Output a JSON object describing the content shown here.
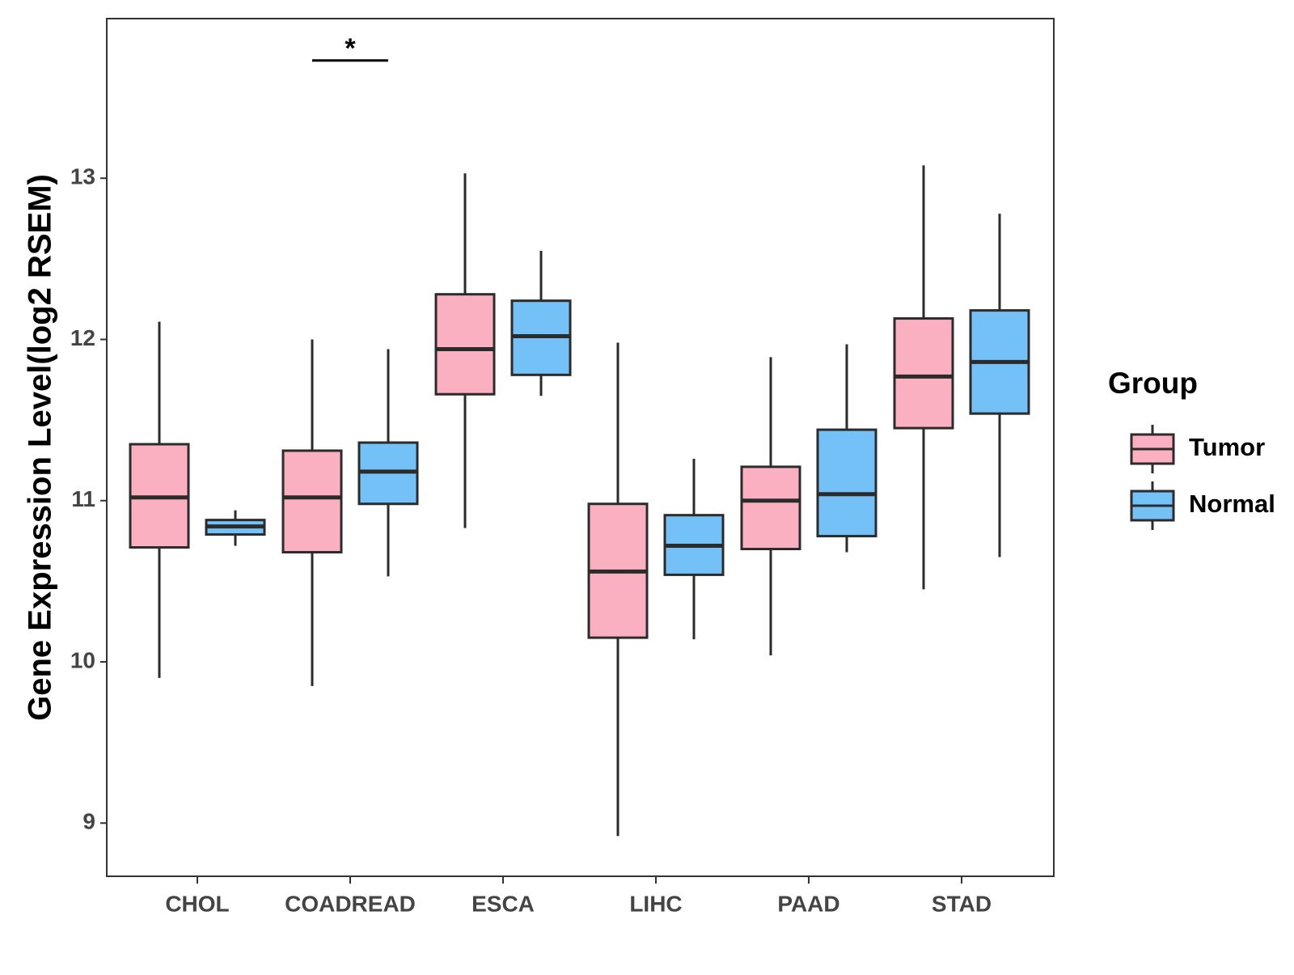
{
  "chart_data": {
    "type": "boxplot",
    "title": "",
    "xlabel": "",
    "ylabel": "Gene Expression Level(log2 RSEM)",
    "ylim": [
      8.67,
      13.99
    ],
    "yticks": [
      9,
      10,
      11,
      12,
      13
    ],
    "yticks_labels": [
      "9",
      "10",
      "11",
      "12",
      "13"
    ],
    "grid": false,
    "legend": {
      "title": "Group",
      "position": "right",
      "entries": [
        "Tumor",
        "Normal"
      ]
    },
    "categories": [
      "CHOL",
      "COADREAD",
      "ESCA",
      "LIHC",
      "PAAD",
      "STAD"
    ],
    "series": [
      {
        "name": "Tumor",
        "color": "#FBB0C2",
        "boxes": [
          {
            "min": 9.9,
            "q1": 10.71,
            "median": 11.02,
            "q3": 11.35,
            "max": 12.11
          },
          {
            "min": 9.85,
            "q1": 10.68,
            "median": 11.02,
            "q3": 11.31,
            "max": 12.0
          },
          {
            "min": 10.83,
            "q1": 11.66,
            "median": 11.94,
            "q3": 12.28,
            "max": 13.03
          },
          {
            "min": 8.92,
            "q1": 10.15,
            "median": 10.56,
            "q3": 10.98,
            "max": 11.98
          },
          {
            "min": 10.04,
            "q1": 10.7,
            "median": 11.0,
            "q3": 11.21,
            "max": 11.89
          },
          {
            "min": 10.45,
            "q1": 11.45,
            "median": 11.77,
            "q3": 12.13,
            "max": 13.08
          }
        ]
      },
      {
        "name": "Normal",
        "color": "#74C1F7",
        "boxes": [
          {
            "min": 10.72,
            "q1": 10.79,
            "median": 10.84,
            "q3": 10.88,
            "max": 10.94
          },
          {
            "min": 10.53,
            "q1": 10.98,
            "median": 11.18,
            "q3": 11.36,
            "max": 11.94
          },
          {
            "min": 11.65,
            "q1": 11.78,
            "median": 12.02,
            "q3": 12.24,
            "max": 12.55
          },
          {
            "min": 10.14,
            "q1": 10.54,
            "median": 10.72,
            "q3": 10.91,
            "max": 11.26
          },
          {
            "min": 10.68,
            "q1": 10.78,
            "median": 11.04,
            "q3": 11.44,
            "max": 11.97
          },
          {
            "min": 10.65,
            "q1": 11.54,
            "median": 11.86,
            "q3": 12.18,
            "max": 12.78
          }
        ]
      }
    ],
    "annotations": [
      {
        "category": "COADREAD",
        "label": "*",
        "y": 13.73
      }
    ]
  }
}
